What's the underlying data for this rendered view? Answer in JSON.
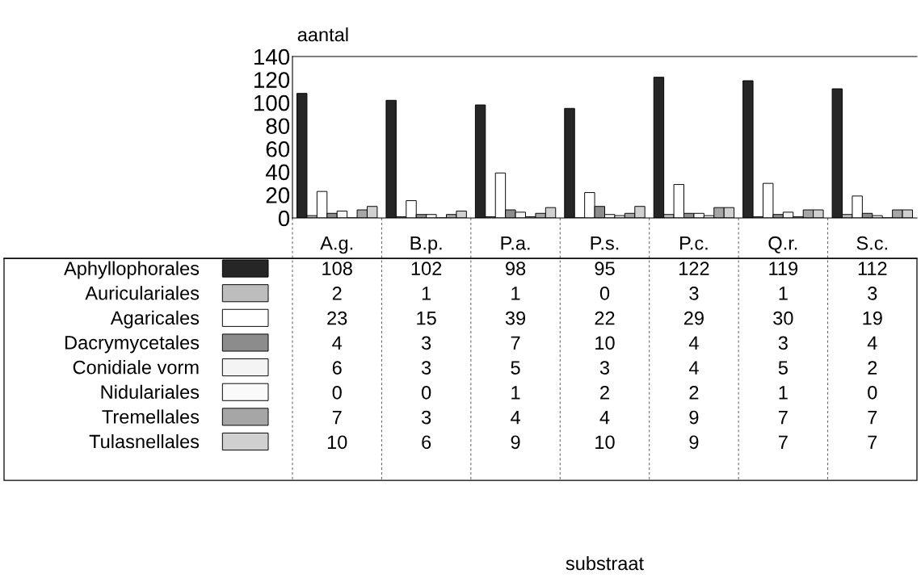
{
  "chart_data": {
    "type": "bar",
    "ylabel": "aantal",
    "annotations": [
      "substraat"
    ],
    "categories": [
      "A.g.",
      "B.p.",
      "P.a.",
      "P.s.",
      "P.c.",
      "Q.r.",
      "S.c."
    ],
    "series": [
      {
        "name": "Aphyllophorales",
        "color": "#262626",
        "values": [
          108,
          102,
          98,
          95,
          122,
          119,
          112
        ]
      },
      {
        "name": "Auriculariales",
        "color": "#bdbdbd",
        "values": [
          2,
          1,
          1,
          0,
          3,
          1,
          3
        ]
      },
      {
        "name": "Agaricales",
        "color": "#ffffff",
        "values": [
          23,
          15,
          39,
          22,
          29,
          30,
          19
        ]
      },
      {
        "name": "Dacrymycetales",
        "color": "#8c8c8c",
        "values": [
          4,
          3,
          7,
          10,
          4,
          3,
          4
        ]
      },
      {
        "name": "Conidiale vorm",
        "color": "#f4f4f4",
        "values": [
          6,
          3,
          5,
          3,
          4,
          5,
          2
        ]
      },
      {
        "name": "Nidulariales",
        "color": "#fafafa",
        "values": [
          0,
          0,
          1,
          2,
          2,
          1,
          0
        ]
      },
      {
        "name": "Tremellales",
        "color": "#a6a6a6",
        "values": [
          7,
          3,
          4,
          4,
          9,
          7,
          7
        ]
      },
      {
        "name": "Tulasnellales",
        "color": "#d0d0d0",
        "values": [
          10,
          6,
          9,
          10,
          9,
          7,
          7
        ]
      }
    ],
    "ylim": [
      0,
      140
    ],
    "yticks": [
      0,
      20,
      40,
      60,
      80,
      100,
      120,
      140
    ],
    "grid": false,
    "legend": "bottom left",
    "data_labels": true
  }
}
